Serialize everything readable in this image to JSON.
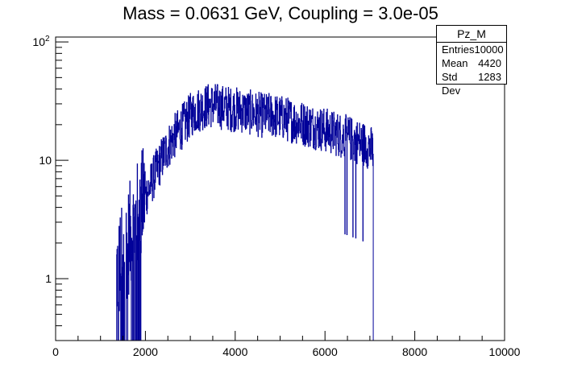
{
  "chart_title": "Mass = 0.0631 GeV, Coupling = 3.0e-05",
  "stats": {
    "title": "Pz_M",
    "rows": [
      {
        "label": "Entries",
        "value": "10000"
      },
      {
        "label": "Mean",
        "value": "4420"
      },
      {
        "label": "Std Dev",
        "value": "1283"
      }
    ]
  },
  "colors": {
    "series": "#000099",
    "axis": "#000000"
  },
  "chart_data": {
    "type": "histogram",
    "title": "Mass = 0.0631 GeV, Coupling = 3.0e-05",
    "xlabel": "",
    "ylabel": "",
    "xlim": [
      0,
      10000
    ],
    "ylim": [
      0.3,
      110
    ],
    "y_scale": "log",
    "grid": false,
    "legend": "top-right stats box",
    "x_ticks": [
      "0",
      "2000",
      "4000",
      "6000",
      "8000",
      "10000"
    ],
    "y_ticks": [
      {
        "label": "1",
        "value": 1
      },
      {
        "label": "10",
        "value": 10
      },
      {
        "label": "10",
        "sup": "2",
        "value": 100
      }
    ],
    "envelope": {
      "x": [
        1400,
        1500,
        1600,
        1700,
        1800,
        1900,
        2000,
        2100,
        2200,
        2300,
        2400,
        2500,
        2600,
        2700,
        2800,
        2900,
        3000,
        3100,
        3200,
        3300,
        3400,
        3500,
        3600,
        3700,
        3800,
        3900,
        4000,
        4200,
        4400,
        4600,
        4800,
        5000,
        5200,
        5400,
        5600,
        5800,
        6000,
        6200,
        6400,
        6600,
        6800,
        7000,
        7050
      ],
      "y": [
        1.2,
        1.5,
        2,
        2.5,
        3.2,
        4,
        5,
        6,
        7.5,
        9,
        11,
        13,
        15,
        17,
        19,
        21,
        24,
        26,
        27,
        28,
        29,
        29,
        29,
        28,
        28,
        27,
        27,
        26,
        25,
        24,
        24,
        23,
        22,
        21,
        20,
        19,
        18,
        17,
        16,
        15,
        14,
        13,
        12
      ]
    },
    "bins": {
      "xmin": 1350,
      "xmax": 7075,
      "count": 900
    }
  }
}
